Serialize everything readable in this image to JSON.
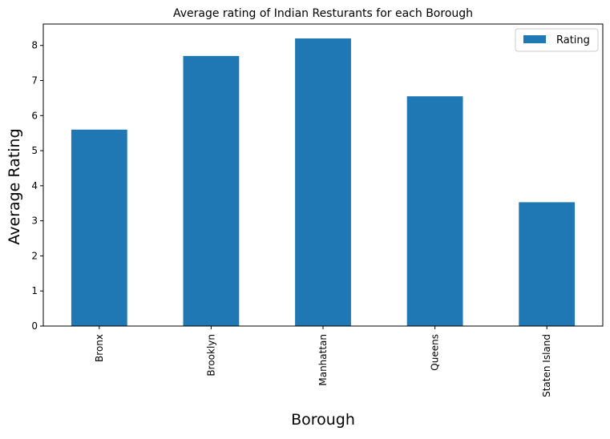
{
  "chart_data": {
    "type": "bar",
    "title": "Average rating of Indian Resturants for each Borough",
    "xlabel": "Borough",
    "ylabel": "Average Rating",
    "categories": [
      "Bronx",
      "Brooklyn",
      "Manhattan",
      "Queens",
      "Staten Island"
    ],
    "series": [
      {
        "name": "Rating",
        "values": [
          5.6,
          7.7,
          8.2,
          6.55,
          3.53
        ],
        "color": "#1f77b4"
      }
    ],
    "yticks": [
      0,
      1,
      2,
      3,
      4,
      5,
      6,
      7,
      8
    ],
    "ylim": [
      0,
      8.61
    ],
    "grid": false,
    "legend_position": "top-right"
  }
}
